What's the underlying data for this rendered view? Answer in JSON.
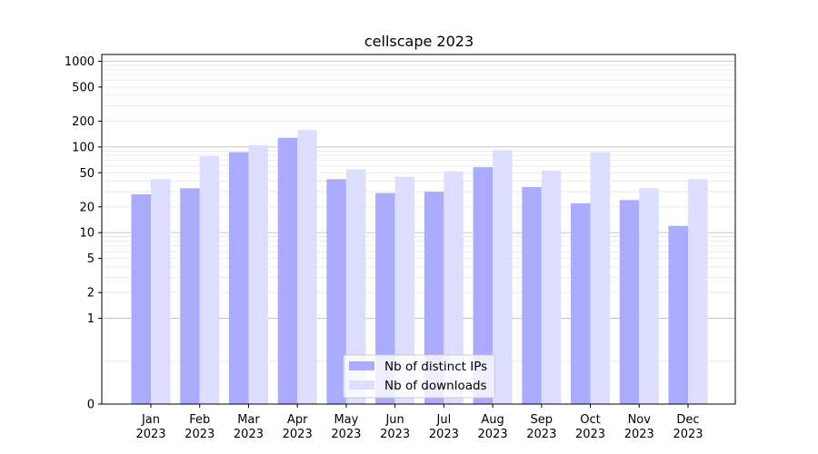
{
  "chart_data": {
    "type": "bar",
    "title": "cellscape 2023",
    "xlabel": "",
    "ylabel": "",
    "yscale": "symlog",
    "ylim": [
      0,
      1200
    ],
    "y_ticks": [
      0,
      1,
      2,
      5,
      10,
      20,
      50,
      100,
      200,
      500,
      1000
    ],
    "grid": true,
    "legend_position": "bottom-center",
    "categories": [
      {
        "month": "Jan",
        "year": "2023"
      },
      {
        "month": "Feb",
        "year": "2023"
      },
      {
        "month": "Mar",
        "year": "2023"
      },
      {
        "month": "Apr",
        "year": "2023"
      },
      {
        "month": "May",
        "year": "2023"
      },
      {
        "month": "Jun",
        "year": "2023"
      },
      {
        "month": "Jul",
        "year": "2023"
      },
      {
        "month": "Aug",
        "year": "2023"
      },
      {
        "month": "Sep",
        "year": "2023"
      },
      {
        "month": "Oct",
        "year": "2023"
      },
      {
        "month": "Nov",
        "year": "2023"
      },
      {
        "month": "Dec",
        "year": "2023"
      }
    ],
    "series": [
      {
        "name": "Nb of distinct IPs",
        "color": "#aaaaff",
        "values": [
          28,
          33,
          87,
          128,
          42,
          29,
          30,
          58,
          34,
          22,
          24,
          12
        ]
      },
      {
        "name": "Nb of downloads",
        "color": "#ddddff",
        "values": [
          42,
          78,
          105,
          158,
          55,
          45,
          52,
          92,
          53,
          87,
          33,
          42
        ]
      }
    ]
  }
}
